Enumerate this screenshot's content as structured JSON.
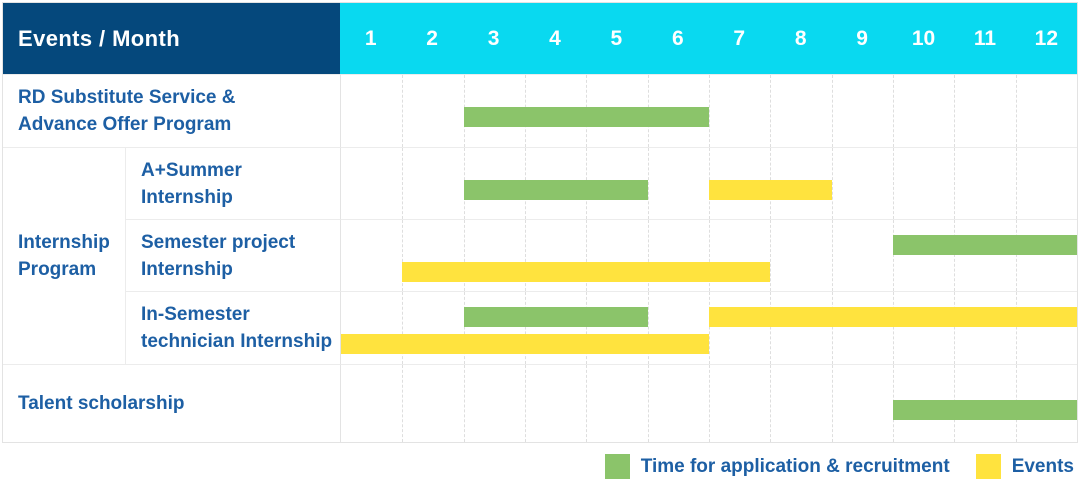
{
  "colors": {
    "header_bg": "#05487c",
    "month_header_bg": "#09d9f0",
    "label_text": "#1d5fa4",
    "application_bar": "#8bc46a",
    "event_bar": "#ffe33e"
  },
  "chart_data": {
    "type": "bar",
    "variant": "gantt",
    "title": "Events / Month",
    "x_axis_label": "Month",
    "x_range": [
      1,
      12
    ],
    "x_ticks": [
      "1",
      "2",
      "3",
      "4",
      "5",
      "6",
      "7",
      "8",
      "9",
      "10",
      "11",
      "12"
    ],
    "grid": true,
    "legend_position": "bottom-right",
    "legend": [
      {
        "key": "application",
        "label": "Time for application & recruitment",
        "color": "#8bc46a"
      },
      {
        "key": "event",
        "label": "Events",
        "color": "#ffe33e"
      }
    ],
    "groups": {
      "Internship Program": [
        "Internship",
        "Program"
      ]
    },
    "rows": [
      {
        "group": null,
        "label": "RD Substitute Service & Advance Offer Program",
        "label_lines": [
          "RD Substitute Service &",
          "Advance Offer Program"
        ],
        "bars": [
          {
            "kind": "application",
            "start_month": 3,
            "end_month": 6,
            "lane": "middle"
          }
        ]
      },
      {
        "group": "Internship Program",
        "label": "A+Summer Internship",
        "label_lines": [
          "A+Summer",
          "Internship"
        ],
        "bars": [
          {
            "kind": "application",
            "start_month": 3,
            "end_month": 5,
            "lane": "middle"
          },
          {
            "kind": "event",
            "start_month": 7,
            "end_month": 8,
            "lane": "middle"
          }
        ]
      },
      {
        "group": "Internship Program",
        "label": "Semester project Internship",
        "label_lines": [
          "Semester project",
          "Internship"
        ],
        "bars": [
          {
            "kind": "application",
            "start_month": 10,
            "end_month": 12,
            "lane": "upper"
          },
          {
            "kind": "event",
            "start_month": 2,
            "end_month": 7,
            "lane": "lower"
          }
        ]
      },
      {
        "group": "Internship Program",
        "label": "In-Semester technician Internship",
        "label_lines": [
          "In-Semester",
          "technician Internship"
        ],
        "bars": [
          {
            "kind": "application",
            "start_month": 3,
            "end_month": 5,
            "lane": "upper"
          },
          {
            "kind": "event",
            "start_month": 7,
            "end_month": 12,
            "lane": "upper"
          },
          {
            "kind": "event",
            "start_month": 1,
            "end_month": 6,
            "lane": "lower"
          }
        ]
      },
      {
        "group": null,
        "label": "Talent scholarship",
        "label_lines": [
          "Talent scholarship"
        ],
        "bars": [
          {
            "kind": "application",
            "start_month": 10,
            "end_month": 12,
            "lane": "middle"
          }
        ]
      }
    ]
  }
}
